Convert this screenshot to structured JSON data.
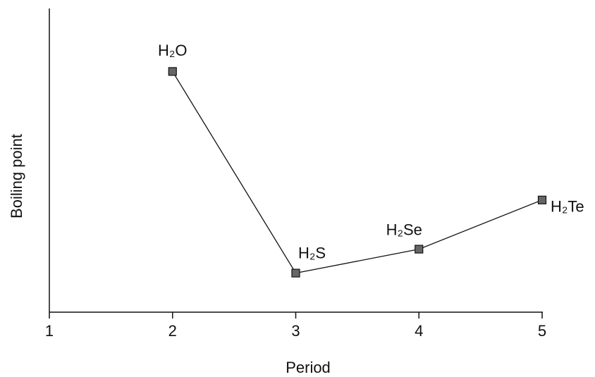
{
  "chart_data": {
    "type": "line",
    "xlabel": "Period",
    "ylabel": "Boiling point",
    "x": [
      2,
      3,
      4,
      5
    ],
    "series": [
      {
        "color": "#666666",
        "values": [
          373,
          213,
          232,
          271
        ],
        "point_labels": [
          "H₂O",
          "H₂S",
          "H₂Se",
          "H₂Te"
        ]
      }
    ],
    "xlim": [
      1,
      5
    ],
    "xticks": [
      1,
      2,
      3,
      4,
      5
    ],
    "ylim": [
      182,
      423
    ],
    "grid": false
  }
}
